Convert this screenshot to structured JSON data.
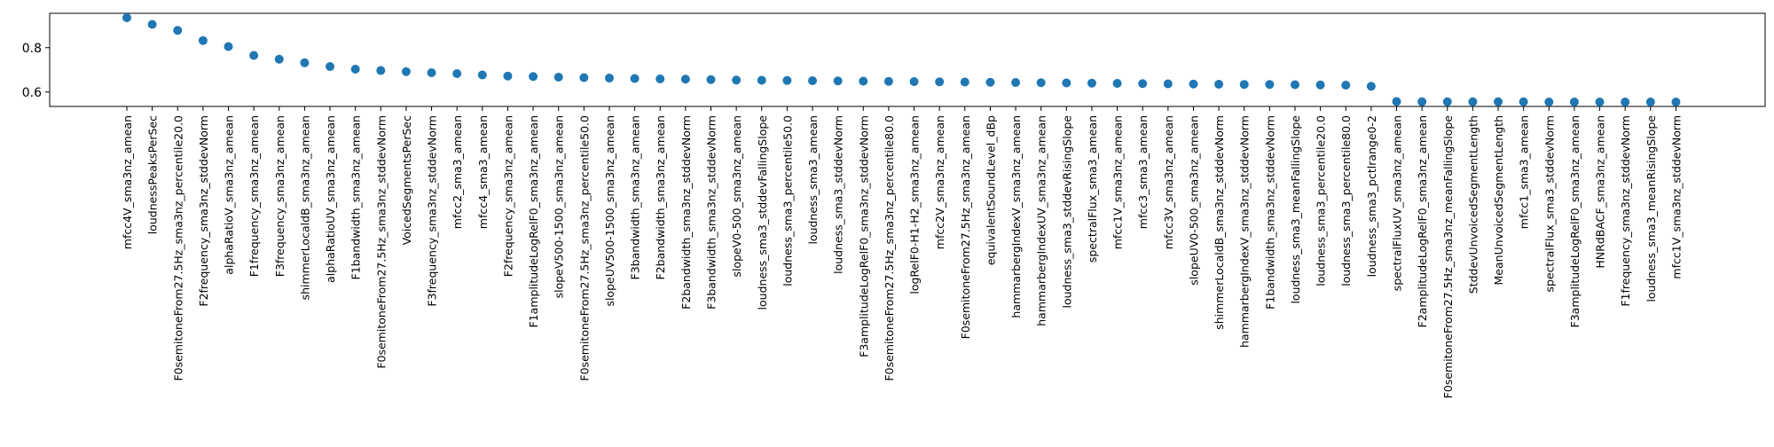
{
  "chart_data": {
    "type": "scatter",
    "title": "",
    "xlabel": "",
    "ylabel": "",
    "ylim": [
      0.535,
      0.955
    ],
    "yticks": [
      0.6,
      0.8
    ],
    "ytick_labels": [
      "0.6",
      "0.8"
    ],
    "grid": false,
    "legend": "none",
    "marker_color": "#1f77b4",
    "categories": [
      "mfcc4V_sma3nz_amean",
      "loudnessPeaksPerSec",
      "F0semitoneFrom27.5Hz_sma3nz_percentile20.0",
      "F2frequency_sma3nz_stddevNorm",
      "alphaRatioV_sma3nz_amean",
      "F1frequency_sma3nz_amean",
      "F3frequency_sma3nz_amean",
      "shimmerLocaldB_sma3nz_amean",
      "alphaRatioUV_sma3nz_amean",
      "F1bandwidth_sma3nz_amean",
      "F0semitoneFrom27.5Hz_sma3nz_stddevNorm",
      "VoicedSegmentsPerSec",
      "F3frequency_sma3nz_stddevNorm",
      "mfcc2_sma3_amean",
      "mfcc4_sma3_amean",
      "F2frequency_sma3nz_amean",
      "F1amplitudeLogRelF0_sma3nz_amean",
      "slopeV500-1500_sma3nz_amean",
      "F0semitoneFrom27.5Hz_sma3nz_percentile50.0",
      "slopeUV500-1500_sma3nz_amean",
      "F3bandwidth_sma3nz_amean",
      "F2bandwidth_sma3nz_amean",
      "F2bandwidth_sma3nz_stddevNorm",
      "F3bandwidth_sma3nz_stddevNorm",
      "slopeV0-500_sma3nz_amean",
      "loudness_sma3_stddevFallingSlope",
      "loudness_sma3_percentile50.0",
      "loudness_sma3_amean",
      "loudness_sma3_stddevNorm",
      "F3amplitudeLogRelF0_sma3nz_stddevNorm",
      "F0semitoneFrom27.5Hz_sma3nz_percentile80.0",
      "logRelF0-H1-H2_sma3nz_amean",
      "mfcc2V_sma3nz_amean",
      "F0semitoneFrom27.5Hz_sma3nz_amean",
      "equivalentSoundLevel_dBp",
      "hammarbergIndexV_sma3nz_amean",
      "hammarbergIndexUV_sma3nz_amean",
      "loudness_sma3_stddevRisingSlope",
      "spectralFlux_sma3_amean",
      "mfcc1V_sma3nz_amean",
      "mfcc3_sma3_amean",
      "mfcc3V_sma3nz_amean",
      "slopeUV0-500_sma3nz_amean",
      "shimmerLocaldB_sma3nz_stddevNorm",
      "hammarbergIndexV_sma3nz_stddevNorm",
      "F1bandwidth_sma3nz_stddevNorm",
      "loudness_sma3_meanFallingSlope",
      "loudness_sma3_percentile20.0",
      "loudness_sma3_percentile80.0",
      "loudness_sma3_pctlrange0-2",
      "spectralFluxUV_sma3nz_amean",
      "F2amplitudeLogRelF0_sma3nz_amean",
      "F0semitoneFrom27.5Hz_sma3nz_meanFallingSlope",
      "StddevUnvoicedSegmentLength",
      "MeanUnvoicedSegmentLength",
      "mfcc1_sma3_amean",
      "spectralFlux_sma3_stddevNorm",
      "F3amplitudeLogRelF0_sma3nz_amean",
      "HNRdBACF_sma3nz_amean",
      "F1frequency_sma3nz_stddevNorm",
      "loudness_sma3_meanRisingSlope",
      "mfcc1V_sma3nz_stddevNorm"
    ],
    "values": [
      0.935,
      0.905,
      0.878,
      0.832,
      0.805,
      0.765,
      0.748,
      0.732,
      0.715,
      0.703,
      0.697,
      0.692,
      0.687,
      0.683,
      0.677,
      0.672,
      0.67,
      0.667,
      0.665,
      0.663,
      0.661,
      0.659,
      0.658,
      0.656,
      0.654,
      0.653,
      0.652,
      0.651,
      0.65,
      0.649,
      0.648,
      0.647,
      0.646,
      0.645,
      0.644,
      0.643,
      0.642,
      0.641,
      0.64,
      0.639,
      0.638,
      0.637,
      0.636,
      0.635,
      0.634,
      0.634,
      0.633,
      0.632,
      0.631,
      0.626,
      0.557,
      0.556,
      0.556,
      0.556,
      0.556,
      0.556,
      0.555,
      0.555,
      0.555,
      0.555,
      0.555,
      0.555
    ]
  }
}
